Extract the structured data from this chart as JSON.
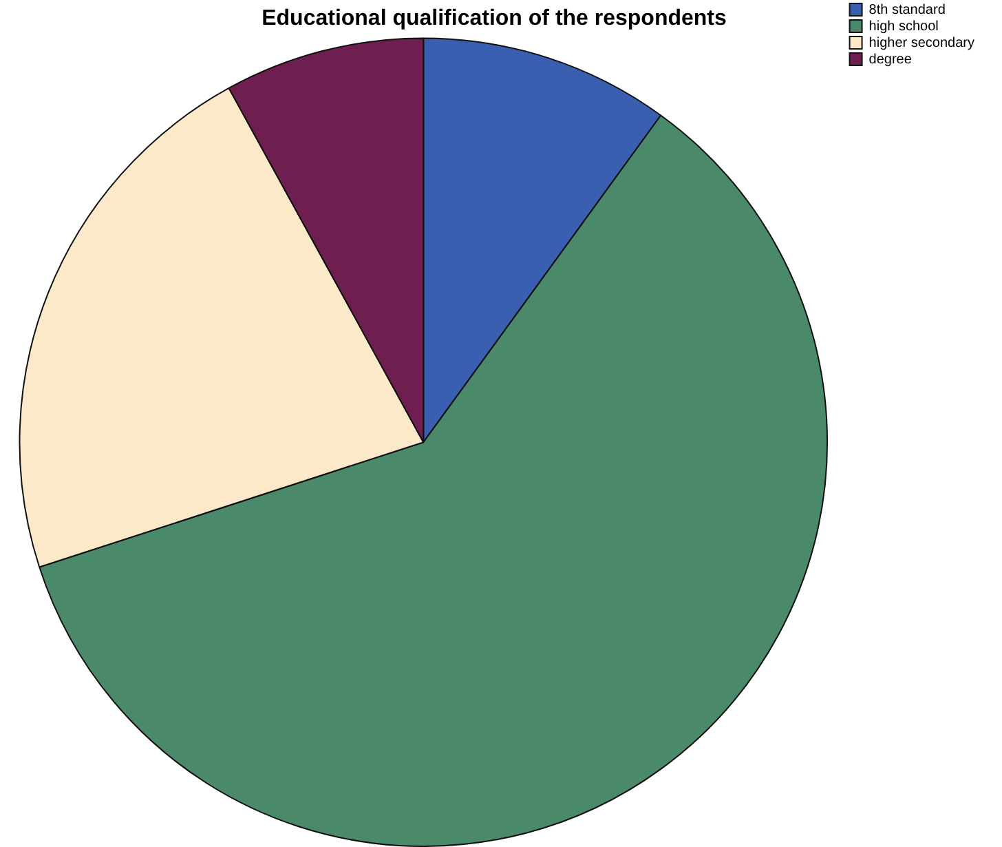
{
  "chart_data": {
    "type": "pie",
    "title": "Educational qualification of the respondents",
    "categories": [
      "8th standard",
      "high school",
      "higher secondary",
      "degree"
    ],
    "values": [
      10,
      60,
      22,
      8
    ],
    "colors": [
      "#3a5fb0",
      "#4a8a6a",
      "#fbe9c9",
      "#6e1f4f"
    ],
    "legend": "top right"
  }
}
